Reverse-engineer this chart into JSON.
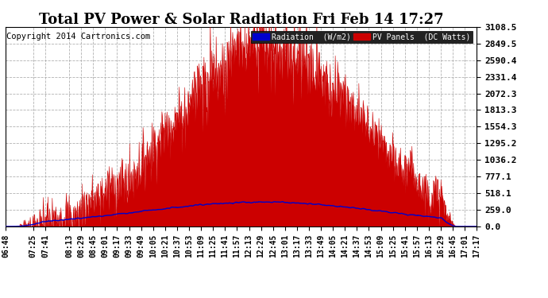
{
  "title": "Total PV Power & Solar Radiation Fri Feb 14 17:27",
  "copyright": "Copyright 2014 Cartronics.com",
  "yticks": [
    0.0,
    259.0,
    518.1,
    777.1,
    1036.2,
    1295.2,
    1554.3,
    1813.3,
    2072.3,
    2331.4,
    2590.4,
    2849.5,
    3108.5
  ],
  "ymax": 3108.5,
  "ymin": 0.0,
  "legend_radiation_label": "Radiation  (W/m2)",
  "legend_pv_label": "PV Panels  (DC Watts)",
  "radiation_color": "#0000cc",
  "pv_color": "#cc0000",
  "background_color": "#ffffff",
  "plot_bg_color": "#ffffff",
  "grid_color": "#aaaaaa",
  "title_fontsize": 13,
  "copyright_fontsize": 7.5,
  "tick_fontsize": 8,
  "legend_fontsize": 7.5,
  "xtick_labels": [
    "06:48",
    "07:25",
    "07:41",
    "08:13",
    "08:29",
    "08:45",
    "09:01",
    "09:17",
    "09:33",
    "09:49",
    "10:05",
    "10:21",
    "10:37",
    "10:53",
    "11:09",
    "11:25",
    "11:41",
    "11:57",
    "12:13",
    "12:29",
    "12:45",
    "13:01",
    "13:17",
    "13:33",
    "13:49",
    "14:05",
    "14:21",
    "14:37",
    "14:53",
    "15:09",
    "15:25",
    "15:41",
    "15:57",
    "16:13",
    "16:29",
    "16:45",
    "17:01",
    "17:17"
  ]
}
